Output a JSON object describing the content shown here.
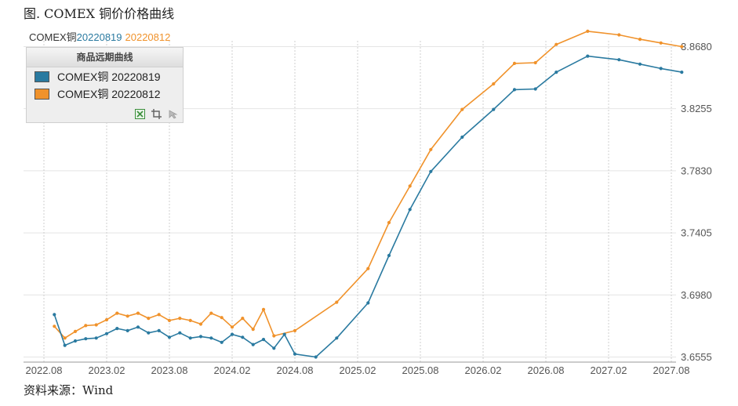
{
  "figure_title": "图. COMEX 铜价价格曲线",
  "source_note": "资料来源：Wind",
  "header": {
    "prefix": "COMEX铜",
    "series1_label": "20220819",
    "series2_label": "20220812"
  },
  "legend": {
    "title": "商品远期曲线",
    "tools": [
      "excel-icon",
      "crop-icon",
      "cursor-icon"
    ]
  },
  "colors": {
    "series1": "#2a7aa0",
    "series2": "#f0922b"
  },
  "chart_data": {
    "type": "line",
    "xlabel": "",
    "ylabel": "",
    "grid": true,
    "legend_position": "top-left",
    "ylim": [
      3.652,
      3.872
    ],
    "y_ticks": [
      "3.6555",
      "3.6980",
      "3.7405",
      "3.7830",
      "3.8255",
      "3.8680"
    ],
    "y_tick_values": [
      3.6555,
      3.698,
      3.7405,
      3.783,
      3.8255,
      3.868
    ],
    "x_ticks": [
      "2022.08",
      "2023.02",
      "2023.08",
      "2024.02",
      "2024.08",
      "2025.02",
      "2025.08",
      "2026.02",
      "2026.08",
      "2027.02",
      "2027.08"
    ],
    "series": [
      {
        "name": "COMEX铜 20220819",
        "color": "#2a7aa0",
        "values": [
          [
            "2022-09",
            3.6845
          ],
          [
            "2022-10",
            3.6635
          ],
          [
            "2022-11",
            3.6665
          ],
          [
            "2022-12",
            3.668
          ],
          [
            "2023-01",
            3.6685
          ],
          [
            "2023-02",
            3.6715
          ],
          [
            "2023-03",
            3.675
          ],
          [
            "2023-04",
            3.6735
          ],
          [
            "2023-05",
            3.676
          ],
          [
            "2023-06",
            3.672
          ],
          [
            "2023-07",
            3.6735
          ],
          [
            "2023-08",
            3.669
          ],
          [
            "2023-09",
            3.672
          ],
          [
            "2023-10",
            3.6685
          ],
          [
            "2023-11",
            3.6695
          ],
          [
            "2023-12",
            3.6685
          ],
          [
            "2024-01",
            3.6655
          ],
          [
            "2024-02",
            3.671
          ],
          [
            "2024-03",
            3.669
          ],
          [
            "2024-04",
            3.664
          ],
          [
            "2024-05",
            3.6675
          ],
          [
            "2024-06",
            3.6615
          ],
          [
            "2024-07",
            3.671
          ],
          [
            "2024-08",
            3.6575
          ],
          [
            "2024-10",
            3.6555
          ],
          [
            "2024-12",
            3.6685
          ],
          [
            "2025-03",
            3.6925
          ],
          [
            "2025-05",
            3.725
          ],
          [
            "2025-07",
            3.7565
          ],
          [
            "2025-09",
            3.7825
          ],
          [
            "2025-12",
            3.806
          ],
          [
            "2026-03",
            3.825
          ],
          [
            "2026-05",
            3.8385
          ],
          [
            "2026-07",
            3.839
          ],
          [
            "2026-09",
            3.8505
          ],
          [
            "2026-12",
            3.8615
          ],
          [
            "2027-03",
            3.859
          ],
          [
            "2027-05",
            3.856
          ],
          [
            "2027-07",
            3.853
          ],
          [
            "2027-09",
            3.8505
          ]
        ]
      },
      {
        "name": "COMEX铜 20220812",
        "color": "#f0922b",
        "values": [
          [
            "2022-09",
            3.6765
          ],
          [
            "2022-10",
            3.6685
          ],
          [
            "2022-11",
            3.673
          ],
          [
            "2022-12",
            3.677
          ],
          [
            "2023-01",
            3.6775
          ],
          [
            "2023-02",
            3.681
          ],
          [
            "2023-03",
            3.6855
          ],
          [
            "2023-04",
            3.6835
          ],
          [
            "2023-05",
            3.6855
          ],
          [
            "2023-06",
            3.682
          ],
          [
            "2023-07",
            3.6845
          ],
          [
            "2023-08",
            3.6805
          ],
          [
            "2023-09",
            3.682
          ],
          [
            "2023-10",
            3.6805
          ],
          [
            "2023-11",
            3.678
          ],
          [
            "2023-12",
            3.6855
          ],
          [
            "2024-01",
            3.6825
          ],
          [
            "2024-02",
            3.676
          ],
          [
            "2024-03",
            3.682
          ],
          [
            "2024-04",
            3.6745
          ],
          [
            "2024-05",
            3.688
          ],
          [
            "2024-06",
            3.67
          ],
          [
            "2024-08",
            3.6735
          ],
          [
            "2024-12",
            3.693
          ],
          [
            "2025-03",
            3.716
          ],
          [
            "2025-05",
            3.7475
          ],
          [
            "2025-07",
            3.7725
          ],
          [
            "2025-09",
            3.7975
          ],
          [
            "2025-12",
            3.825
          ],
          [
            "2026-03",
            3.8425
          ],
          [
            "2026-05",
            3.8565
          ],
          [
            "2026-07",
            3.857
          ],
          [
            "2026-09",
            3.8695
          ],
          [
            "2026-12",
            3.8785
          ],
          [
            "2027-03",
            3.876
          ],
          [
            "2027-05",
            3.873
          ],
          [
            "2027-07",
            3.8705
          ],
          [
            "2027-09",
            3.868
          ]
        ]
      }
    ]
  }
}
